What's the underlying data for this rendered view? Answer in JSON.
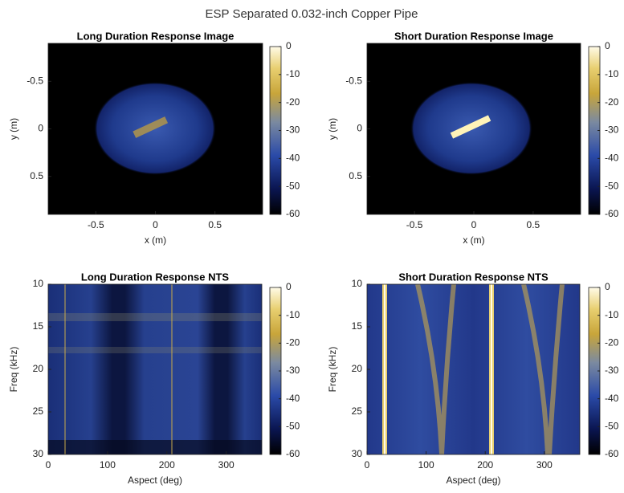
{
  "title": "ESP Separated 0.032-inch Copper Pipe",
  "chart_data": [
    {
      "type": "heatmap",
      "title": "Long Duration Response Image",
      "xlabel": "x (m)",
      "ylabel": "y (m)",
      "xlim": [
        -0.9,
        0.9
      ],
      "xticks": [
        -0.5,
        0,
        0.5
      ],
      "ylim": [
        -0.9,
        0.9
      ],
      "yticks": [
        -0.5,
        0,
        0.5
      ],
      "y_reversed": true,
      "clim": [
        -60,
        0
      ],
      "cticks": [
        0,
        -10,
        -20,
        -30,
        -40,
        -50,
        -60
      ]
    },
    {
      "type": "heatmap",
      "title": "Short Duration Response Image",
      "xlabel": "x (m)",
      "ylabel": "y (m)",
      "xlim": [
        -0.9,
        0.9
      ],
      "xticks": [
        -0.5,
        0,
        0.5
      ],
      "ylim": [
        -0.9,
        0.9
      ],
      "yticks": [
        -0.5,
        0,
        0.5
      ],
      "y_reversed": true,
      "clim": [
        -60,
        0
      ],
      "cticks": [
        0,
        -10,
        -20,
        -30,
        -40,
        -50,
        -60
      ]
    },
    {
      "type": "heatmap",
      "title": "Long Duration Response NTS",
      "xlabel": "Aspect (deg)",
      "ylabel": "Freq (kHz)",
      "xlim": [
        0,
        360
      ],
      "xticks": [
        0,
        100,
        200,
        300
      ],
      "ylim": [
        10,
        30
      ],
      "yticks": [
        10,
        15,
        20,
        25,
        30
      ],
      "y_reversed": true,
      "clim": [
        -60,
        0
      ],
      "cticks": [
        0,
        -10,
        -20,
        -30,
        -40,
        -50,
        -60
      ]
    },
    {
      "type": "heatmap",
      "title": "Short Duration Response NTS",
      "xlabel": "Aspect (deg)",
      "ylabel": "Freq (kHz)",
      "xlim": [
        0,
        360
      ],
      "xticks": [
        0,
        100,
        200,
        300
      ],
      "ylim": [
        10,
        30
      ],
      "yticks": [
        10,
        15,
        20,
        25,
        30
      ],
      "y_reversed": true,
      "clim": [
        -60,
        0
      ],
      "cticks": [
        0,
        -10,
        -20,
        -30,
        -40,
        -50,
        -60
      ]
    }
  ]
}
